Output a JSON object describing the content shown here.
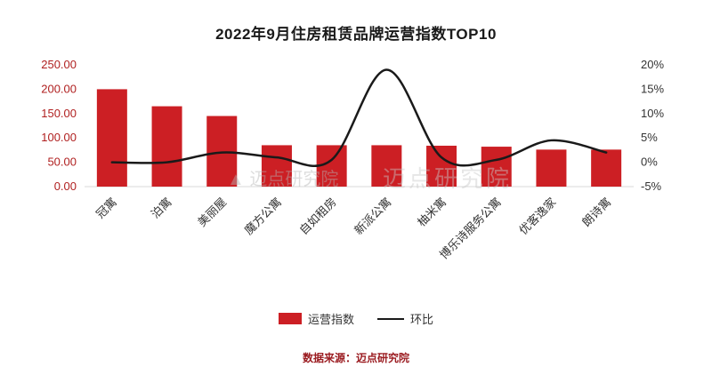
{
  "title": "2022年9月住房租赁品牌运营指数TOP10",
  "source": "数据来源：迈点研究院",
  "watermark": "迈点研究院",
  "colors": {
    "bar": "#cc1f24",
    "line": "#1a1a1a",
    "left_axis_text": "#b02020",
    "right_axis_text": "#333333",
    "baseline": "#d9d9d9",
    "watermark_gray": "#b5b5b5"
  },
  "legend": {
    "bar_label": "运营指数",
    "line_label": "环比"
  },
  "chart_data": {
    "type": "bar+line",
    "categories": [
      "冠寓",
      "泊寓",
      "美丽屋",
      "魔方公寓",
      "自如租房",
      "新派公寓",
      "柚米寓",
      "博乐诗服务公寓",
      "优客逸家",
      "朗诗寓"
    ],
    "series": [
      {
        "name": "运营指数",
        "type": "bar",
        "axis": "left",
        "values": [
          200,
          165,
          145,
          85,
          85,
          85,
          84,
          82,
          76,
          76
        ]
      },
      {
        "name": "环比",
        "type": "line",
        "axis": "right",
        "values": [
          0,
          0,
          2,
          1,
          0.5,
          19,
          1,
          0.5,
          4.5,
          2
        ]
      }
    ],
    "left_axis": {
      "min": 0,
      "max": 250,
      "step": 50,
      "decimals": 2
    },
    "right_axis": {
      "min": -5,
      "max": 20,
      "step": 5,
      "suffix": "%"
    },
    "grid": false,
    "legend_position": "bottom"
  }
}
